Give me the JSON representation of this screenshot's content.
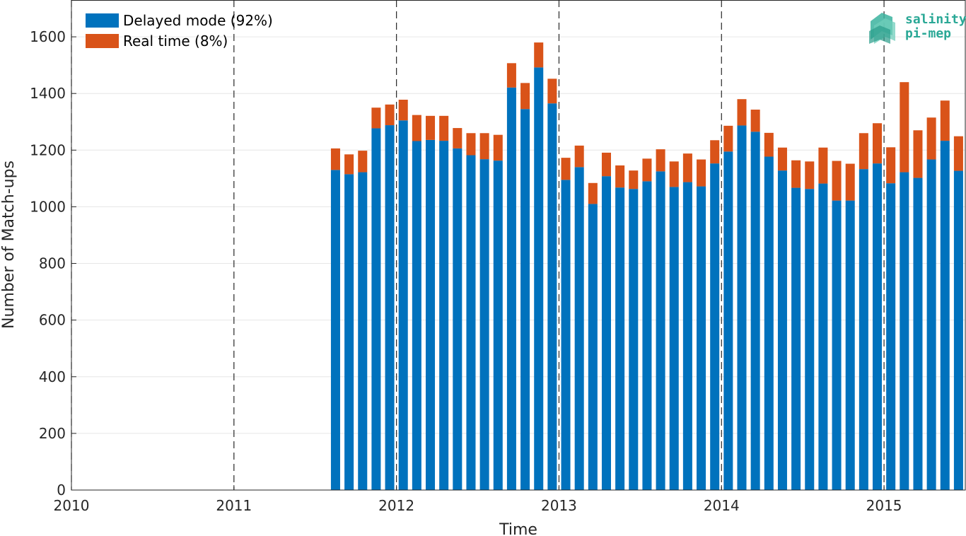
{
  "chart_data": {
    "type": "bar",
    "stacked": true,
    "xlabel": "Time",
    "ylabel": "Number of Match-ups",
    "xlim": [
      2010,
      2015.5
    ],
    "ylim": [
      0,
      1730
    ],
    "x_ticks": [
      "2010",
      "2011",
      "2012",
      "2013",
      "2014",
      "2015"
    ],
    "y_ticks": [
      "0",
      "200",
      "400",
      "600",
      "800",
      "1000",
      "1200",
      "1400",
      "1600"
    ],
    "year_dividers": [
      2010,
      2011,
      2012,
      2013,
      2014,
      2015
    ],
    "grid": true,
    "legend_position": "top-left",
    "x": [
      "2011-08",
      "2011-09",
      "2011-10",
      "2011-11",
      "2011-12",
      "2012-01",
      "2012-02",
      "2012-03",
      "2012-04",
      "2012-05",
      "2012-06",
      "2012-07",
      "2012-08",
      "2012-09",
      "2012-10",
      "2012-11",
      "2012-12",
      "2013-01",
      "2013-02",
      "2013-03",
      "2013-04",
      "2013-05",
      "2013-06",
      "2013-07",
      "2013-08",
      "2013-09",
      "2013-10",
      "2013-11",
      "2013-12",
      "2014-01",
      "2014-02",
      "2014-03",
      "2014-04",
      "2014-05",
      "2014-06",
      "2014-07",
      "2014-08",
      "2014-09",
      "2014-10",
      "2014-11",
      "2014-12",
      "2015-01",
      "2015-02",
      "2015-03",
      "2015-04",
      "2015-05",
      "2015-06"
    ],
    "series": [
      {
        "name": "Delayed mode (92%)",
        "color": "#0072BD",
        "values": [
          1130,
          1115,
          1122,
          1277,
          1288,
          1305,
          1232,
          1236,
          1233,
          1206,
          1182,
          1168,
          1163,
          1421,
          1345,
          1492,
          1365,
          1095,
          1140,
          1010,
          1108,
          1068,
          1063,
          1090,
          1125,
          1070,
          1087,
          1072,
          1153,
          1195,
          1287,
          1265,
          1177,
          1128,
          1067,
          1063,
          1082,
          1022,
          1022,
          1133,
          1153,
          1083,
          1122,
          1102,
          1167,
          1233,
          1127
        ]
      },
      {
        "name": "Real time (8%)",
        "color": "#D95319",
        "values": [
          76,
          70,
          76,
          73,
          73,
          73,
          92,
          85,
          88,
          72,
          78,
          92,
          91,
          86,
          92,
          88,
          87,
          78,
          76,
          74,
          83,
          78,
          65,
          80,
          78,
          90,
          101,
          95,
          82,
          91,
          93,
          78,
          84,
          81,
          97,
          97,
          127,
          140,
          130,
          127,
          142,
          127,
          318,
          168,
          148,
          142,
          122
        ]
      }
    ]
  },
  "logo": {
    "line1": "salinity",
    "line2": "pi-mep"
  }
}
